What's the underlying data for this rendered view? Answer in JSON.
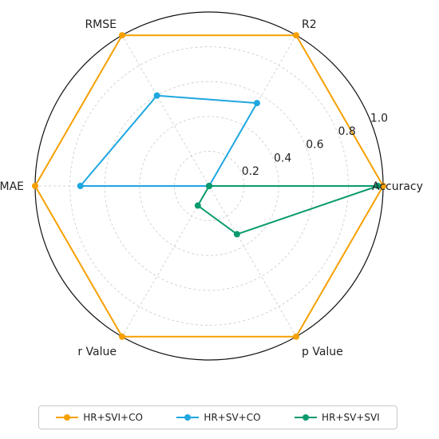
{
  "chart_data": {
    "type": "radar",
    "axes": [
      "Accuracy",
      "R2",
      "RMSE",
      "MAE",
      "r Value",
      "p Value"
    ],
    "rlim": [
      0,
      1.0
    ],
    "rticks": [
      0.2,
      0.4,
      0.6,
      0.8,
      1.0
    ],
    "rtick_labels": [
      "0.2",
      "0.4",
      "0.6",
      "0.8",
      "1.0"
    ],
    "grid": true,
    "legend_position": "bottom",
    "series": [
      {
        "name": "HR+SVI+CO",
        "color": "#f5a000",
        "values": [
          1.0,
          1.0,
          1.0,
          1.0,
          1.0,
          1.0
        ]
      },
      {
        "name": "HR+SV+CO",
        "color": "#1ea7e0",
        "values": [
          0.0,
          0.55,
          0.6,
          0.74,
          0.0,
          0.0
        ]
      },
      {
        "name": "HR+SV+SVI",
        "color": "#0a9a6e",
        "values": [
          0.97,
          0.0,
          0.0,
          0.0,
          0.13,
          0.32
        ]
      }
    ]
  }
}
